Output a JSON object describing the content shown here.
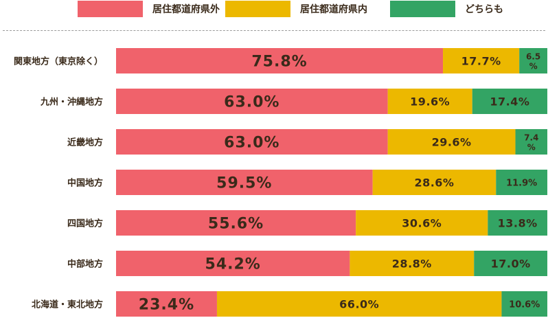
{
  "chart_data": {
    "type": "bar",
    "orientation": "horizontal",
    "stacked": true,
    "unit": "%",
    "categories": [
      "関東地方（東京除く）",
      "九州・沖縄地方",
      "近畿地方",
      "中国地方",
      "四国地方",
      "中部地方",
      "北海道・東北地方"
    ],
    "series": [
      {
        "name": "居住都道府県外",
        "color": "#f0626b",
        "values": [
          75.8,
          63.0,
          63.0,
          59.5,
          55.6,
          54.2,
          23.4
        ]
      },
      {
        "name": "居住都道府県内",
        "color": "#ecb800",
        "values": [
          17.7,
          19.6,
          29.6,
          28.6,
          30.6,
          28.8,
          66.0
        ]
      },
      {
        "name": "どちらも",
        "color": "#33a464",
        "values": [
          6.5,
          17.4,
          7.4,
          11.9,
          13.8,
          17.0,
          10.6
        ]
      }
    ],
    "xlim": [
      0,
      100
    ],
    "legend_position": "top",
    "grid": false
  }
}
